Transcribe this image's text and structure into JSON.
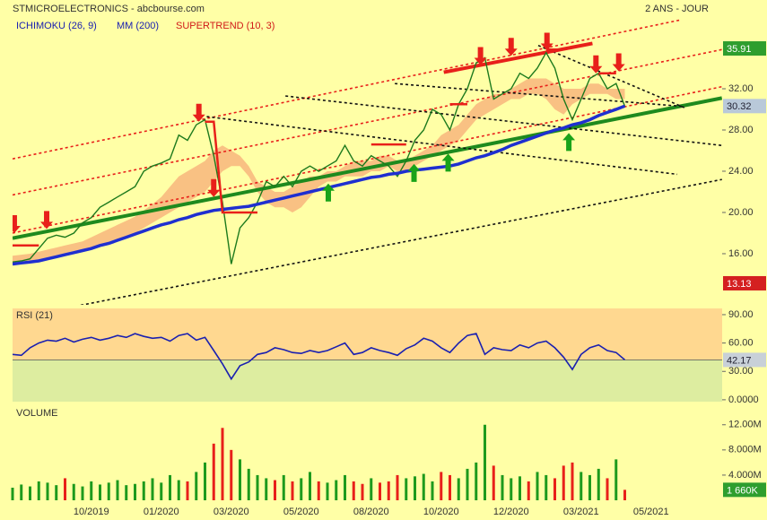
{
  "header": {
    "title": "STMICROELECTRONICS - abcbourse.com",
    "period": "2 ANS - JOUR"
  },
  "chart_data": [
    {
      "type": "line",
      "ylim": [
        11.04,
        38.87
      ],
      "yticks": [
        {
          "value": 16,
          "label": "16.00"
        },
        {
          "value": 20,
          "label": "20.00"
        },
        {
          "value": 24,
          "label": "24.00"
        },
        {
          "value": 28,
          "label": "28.00"
        },
        {
          "value": 32,
          "label": "32.00"
        }
      ],
      "price": {
        "color": "#1d7a1d",
        "values": [
          15.2,
          15.3,
          15.5,
          16.5,
          17.5,
          17.8,
          17.6,
          18.0,
          19.0,
          19.5,
          20.5,
          21.0,
          21.5,
          22.0,
          22.5,
          24.0,
          24.5,
          24.8,
          25.2,
          27.5,
          27.0,
          28.5,
          29.0,
          25.5,
          21.0,
          15.0,
          18.5,
          19.5,
          21.0,
          23.0,
          22.5,
          23.5,
          22.5,
          24.0,
          24.5,
          24.0,
          24.5,
          25.0,
          26.5,
          25.0,
          24.5,
          25.5,
          25.0,
          24.5,
          23.5,
          25.0,
          27.0,
          28.0,
          30.0,
          29.5,
          28.0,
          30.5,
          32.0,
          34.5,
          35.0,
          31.0,
          31.5,
          32.0,
          33.5,
          33.0,
          34.0,
          35.5,
          34.0,
          31.0,
          29.0,
          31.0,
          33.0,
          33.5,
          32.0,
          32.5,
          30.3,
          null,
          null,
          null
        ]
      },
      "cloud": {
        "name": "ICHIMOKU (26, 9)",
        "color": "#f8b67c",
        "upper": [
          15.8,
          15.9,
          16.0,
          16.2,
          16.4,
          16.6,
          16.8,
          17.0,
          17.2,
          17.6,
          18.0,
          18.4,
          18.8,
          19.2,
          19.6,
          20.2,
          20.8,
          21.5,
          22.5,
          23.5,
          24.0,
          24.5,
          25.0,
          26.0,
          26.5,
          26.0,
          25.5,
          24.5,
          23.0,
          22.5,
          22.0,
          22.0,
          22.5,
          23.0,
          23.5,
          23.5,
          24.0,
          24.0,
          24.5,
          25.0,
          25.0,
          25.0,
          25.5,
          25.5,
          25.0,
          25.0,
          25.5,
          26.0,
          26.5,
          27.5,
          28.0,
          28.5,
          29.5,
          30.5,
          31.0,
          31.5,
          31.5,
          32.0,
          32.5,
          33.0,
          33.0,
          33.0,
          32.5,
          32.0,
          32.0,
          32.0,
          32.5,
          32.5,
          32.0,
          32.0,
          32.0,
          null,
          null,
          null
        ],
        "lower": [
          15.0,
          15.0,
          15.2,
          15.3,
          15.5,
          15.7,
          15.9,
          16.0,
          16.2,
          16.5,
          16.8,
          17.0,
          17.3,
          17.6,
          18.0,
          18.5,
          19.0,
          19.5,
          20.0,
          20.5,
          21.0,
          21.5,
          22.0,
          23.0,
          24.0,
          24.5,
          24.5,
          23.5,
          22.0,
          21.0,
          20.5,
          20.5,
          20.0,
          20.5,
          21.5,
          22.5,
          23.0,
          23.0,
          23.5,
          23.5,
          23.5,
          24.0,
          24.0,
          24.5,
          24.0,
          24.0,
          24.5,
          25.0,
          25.5,
          26.0,
          26.5,
          27.0,
          28.0,
          29.0,
          29.5,
          30.0,
          30.5,
          31.0,
          31.0,
          31.5,
          31.5,
          31.0,
          30.0,
          29.5,
          30.5,
          31.0,
          31.5,
          31.5,
          31.5,
          31.0,
          31.0,
          null,
          null,
          null
        ]
      },
      "series": [
        {
          "name": "MM (200)",
          "color": "#1f2fd0",
          "values": [
            15.0,
            15.1,
            15.2,
            15.3,
            15.5,
            15.7,
            15.9,
            16.1,
            16.3,
            16.5,
            16.8,
            17.0,
            17.3,
            17.6,
            17.9,
            18.2,
            18.5,
            18.8,
            19.0,
            19.3,
            19.5,
            19.8,
            20.0,
            20.2,
            20.3,
            20.4,
            20.5,
            20.6,
            20.8,
            21.0,
            21.2,
            21.4,
            21.6,
            21.8,
            22.0,
            22.2,
            22.4,
            22.6,
            22.8,
            23.0,
            23.2,
            23.4,
            23.5,
            23.7,
            23.8,
            24.0,
            24.1,
            24.2,
            24.3,
            24.4,
            24.5,
            24.7,
            25.0,
            25.3,
            25.5,
            25.8,
            26.1,
            26.5,
            26.8,
            27.1,
            27.4,
            27.7,
            28.0,
            28.2,
            28.5,
            28.7,
            29.0,
            29.4,
            29.7,
            30.0,
            30.32,
            null,
            null,
            null
          ]
        },
        {
          "name": "SUPERTREND (10, 3)",
          "color": "#e8201a",
          "values": [
            16.8,
            16.8,
            16.8,
            16.8,
            null,
            null,
            null,
            null,
            null,
            null,
            null,
            null,
            null,
            null,
            null,
            null,
            null,
            null,
            null,
            null,
            null,
            null,
            28.8,
            28.8,
            20.0,
            20.0,
            20.0,
            20.0,
            20.0,
            null,
            null,
            null,
            null,
            null,
            null,
            null,
            null,
            null,
            null,
            null,
            null,
            26.6,
            26.6,
            26.6,
            26.6,
            26.6,
            null,
            null,
            null,
            null,
            30.5,
            30.5,
            30.5,
            null,
            null,
            null,
            null,
            null,
            null,
            null,
            null,
            35.8,
            35.8,
            35.8,
            null,
            null,
            null,
            33.5,
            33.5,
            33.5,
            null,
            null,
            null,
            null
          ]
        }
      ],
      "trendlines": [
        {
          "style": "thick",
          "color": "#1e8a1e",
          "x": [
            0,
            81.1
          ],
          "y": [
            17.5,
            31.1
          ]
        },
        {
          "style": "dotted",
          "color": "#e8201a",
          "x": [
            0,
            76.5
          ],
          "y": [
            25.2,
            38.7
          ]
        },
        {
          "style": "dotted",
          "color": "#e8201a",
          "x": [
            0,
            81.1
          ],
          "y": [
            21.7,
            35.8
          ]
        },
        {
          "style": "dotted",
          "color": "#e8201a",
          "x": [
            0,
            81.1
          ],
          "y": [
            18.0,
            32.2
          ]
        },
        {
          "style": "dotted",
          "color": "#111111",
          "x": [
            7.8,
            81.1
          ],
          "y": [
            11.0,
            23.2
          ]
        },
        {
          "style": "dotted",
          "color": "#111111",
          "x": [
            22.2,
            76
          ],
          "y": [
            29.3,
            23.7
          ]
        },
        {
          "style": "dotted",
          "color": "#111111",
          "x": [
            31.2,
            81.1
          ],
          "y": [
            31.3,
            26.5
          ]
        },
        {
          "style": "dotted",
          "color": "#111111",
          "x": [
            43.7,
            76.5
          ],
          "y": [
            32.5,
            30.3
          ]
        },
        {
          "style": "dotted",
          "color": "#111111",
          "x": [
            60.1,
            77
          ],
          "y": [
            36.2,
            30.1
          ]
        },
        {
          "style": "thick",
          "color": "#e8201a",
          "x": [
            49.3,
            66.3
          ],
          "y": [
            33.6,
            36.4
          ]
        }
      ],
      "signals": [
        {
          "dir": "down",
          "color": "#e8201a",
          "x": 0.2,
          "y": 18.0
        },
        {
          "dir": "down",
          "color": "#e8201a",
          "x": 3.9,
          "y": 18.4
        },
        {
          "dir": "down",
          "color": "#e8201a",
          "x": 21.3,
          "y": 28.8
        },
        {
          "dir": "down",
          "color": "#e8201a",
          "x": 23.0,
          "y": 21.5
        },
        {
          "dir": "down",
          "color": "#e8201a",
          "x": 53.5,
          "y": 34.3
        },
        {
          "dir": "down",
          "color": "#e8201a",
          "x": 57.0,
          "y": 35.2
        },
        {
          "dir": "down",
          "color": "#e8201a",
          "x": 61.1,
          "y": 35.7
        },
        {
          "dir": "down",
          "color": "#e8201a",
          "x": 66.7,
          "y": 33.5
        },
        {
          "dir": "down",
          "color": "#e8201a",
          "x": 69.3,
          "y": 33.7
        },
        {
          "dir": "up",
          "color": "#19a319",
          "x": 36.1,
          "y": 22.8
        },
        {
          "dir": "up",
          "color": "#19a319",
          "x": 45.9,
          "y": 24.7
        },
        {
          "dir": "up",
          "color": "#19a319",
          "x": 49.8,
          "y": 25.7
        },
        {
          "dir": "up",
          "color": "#19a319",
          "x": 63.6,
          "y": 27.7
        }
      ],
      "badges": [
        {
          "value": 35.91,
          "color": "#2e9e2e"
        },
        {
          "value": 30.32,
          "color": "#b9c9d9"
        },
        {
          "value": 13.13,
          "color": "#d42020"
        }
      ]
    },
    {
      "type": "line",
      "title": "RSI (21)",
      "color": "#1a20b0",
      "ylim": [
        -2,
        96.6
      ],
      "yticks": [
        {
          "value": 0,
          "label": "0.0000"
        },
        {
          "value": 30,
          "label": "30.00"
        },
        {
          "value": 60,
          "label": "60.00"
        },
        {
          "value": 90,
          "label": "90.00"
        }
      ],
      "band_colors": [
        "#ffd890",
        "#ddeda0"
      ],
      "values": [
        48,
        47,
        55,
        60,
        63,
        62,
        65,
        61,
        64,
        66,
        63,
        65,
        68,
        66,
        70,
        67,
        65,
        66,
        62,
        68,
        70,
        63,
        66,
        52,
        38,
        22,
        36,
        40,
        48,
        50,
        55,
        53,
        50,
        49,
        52,
        50,
        52,
        56,
        60,
        48,
        50,
        55,
        52,
        50,
        47,
        54,
        58,
        65,
        62,
        55,
        50,
        60,
        68,
        70,
        48,
        55,
        53,
        52,
        58,
        55,
        60,
        62,
        55,
        45,
        32,
        48,
        55,
        58,
        52,
        50,
        42.17,
        null,
        null,
        null
      ],
      "badge": {
        "value": 42.17,
        "color": "#c8d0d8"
      }
    },
    {
      "type": "bar",
      "title": "VOLUME",
      "up_color": "#1d9a1d",
      "down_color": "#e8201a",
      "ylim": [
        0,
        15.1
      ],
      "yticks": [
        {
          "value": 4,
          "label": "4.000M"
        },
        {
          "value": 8,
          "label": "8.000M"
        },
        {
          "value": 12,
          "label": "12.00M"
        }
      ],
      "categories": [
        null,
        null,
        null,
        null,
        null,
        null,
        null,
        null,
        null,
        "10/2019",
        null,
        null,
        null,
        null,
        null,
        null,
        null,
        "01/2020",
        null,
        null,
        null,
        null,
        null,
        null,
        null,
        "03/2020",
        null,
        null,
        null,
        null,
        null,
        null,
        null,
        "05/2020",
        null,
        null,
        null,
        null,
        null,
        null,
        null,
        "08/2020",
        null,
        null,
        null,
        null,
        null,
        null,
        null,
        "10/2020",
        null,
        null,
        null,
        null,
        null,
        null,
        null,
        "12/2020",
        null,
        null,
        null,
        null,
        null,
        null,
        null,
        "03/2021",
        null,
        null,
        null,
        null,
        null,
        null,
        null,
        "05/2021"
      ],
      "values": [
        2.0,
        2.5,
        2.2,
        3.0,
        2.8,
        2.4,
        3.5,
        2.6,
        2.2,
        3.0,
        2.5,
        2.8,
        3.2,
        2.4,
        2.6,
        3.0,
        3.5,
        2.8,
        4.0,
        3.2,
        3.0,
        4.5,
        6.0,
        9.0,
        11.5,
        8.0,
        6.5,
        5.0,
        4.0,
        3.5,
        3.2,
        4.0,
        3.0,
        3.5,
        4.5,
        3.0,
        2.8,
        3.2,
        4.0,
        3.0,
        2.6,
        3.5,
        2.8,
        3.0,
        4.0,
        3.5,
        3.8,
        4.2,
        3.0,
        4.5,
        4.0,
        3.5,
        5.0,
        6.0,
        12.0,
        5.5,
        4.0,
        3.5,
        3.8,
        3.0,
        4.5,
        4.0,
        3.5,
        5.5,
        6.0,
        4.5,
        4.0,
        5.0,
        3.5,
        6.5,
        1.66,
        null,
        null,
        null
      ],
      "badge": {
        "value": 1.66,
        "label": "1 660K",
        "color": "#2e9e2e"
      }
    }
  ]
}
